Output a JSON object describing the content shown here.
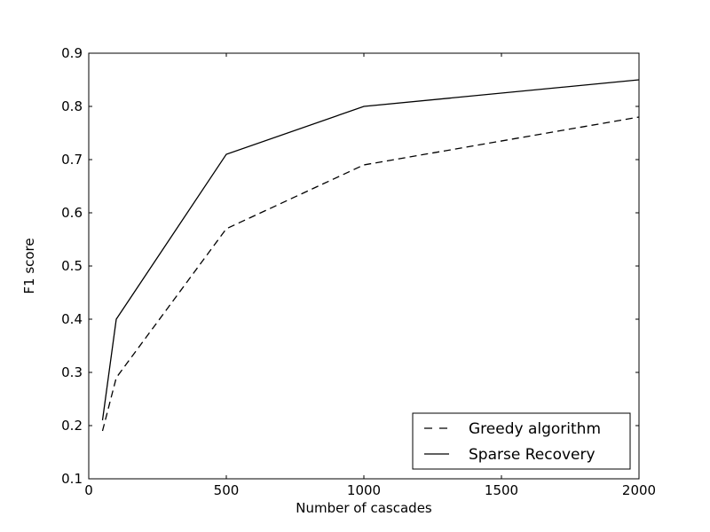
{
  "chart_data": {
    "type": "line",
    "title": "",
    "xlabel": "Number of cascades",
    "ylabel": "F1 score",
    "xlim": [
      0,
      2000
    ],
    "ylim": [
      0.1,
      0.9
    ],
    "x_ticks": [
      0,
      500,
      1000,
      1500,
      2000
    ],
    "y_ticks": [
      0.1,
      0.2,
      0.3,
      0.4,
      0.5,
      0.6,
      0.7,
      0.8,
      0.9
    ],
    "grid": false,
    "background_color": "#ffffff",
    "axes_color": "#000000",
    "legend_position": "lower right",
    "series": [
      {
        "name": "Greedy algorithm",
        "style": "dashed",
        "color": "#000000",
        "x": [
          50,
          100,
          500,
          1000,
          2000
        ],
        "y": [
          0.19,
          0.29,
          0.57,
          0.69,
          0.78
        ]
      },
      {
        "name": "Sparse Recovery",
        "style": "solid",
        "color": "#000000",
        "x": [
          50,
          100,
          500,
          1000,
          2000
        ],
        "y": [
          0.21,
          0.4,
          0.71,
          0.8,
          0.85
        ]
      }
    ]
  },
  "legend": {
    "entries": [
      {
        "label": "Greedy algorithm",
        "style": "dashed"
      },
      {
        "label": "Sparse Recovery",
        "style": "solid"
      }
    ]
  }
}
